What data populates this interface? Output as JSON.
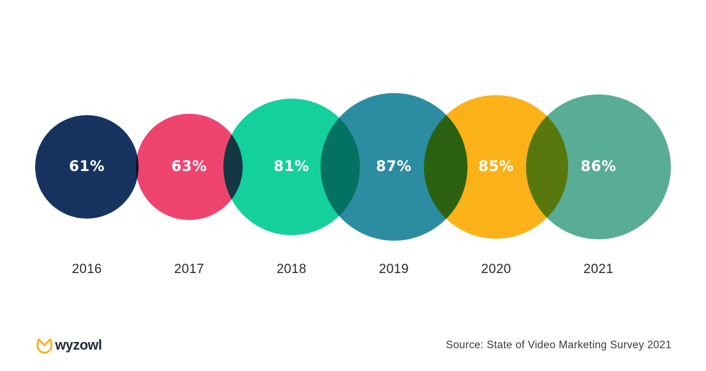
{
  "chart_data": {
    "type": "bubble",
    "variant": "overlapping-proportional-circles",
    "title": "",
    "categories": [
      "2016",
      "2017",
      "2018",
      "2019",
      "2020",
      "2021"
    ],
    "values": [
      61,
      63,
      81,
      87,
      85,
      86
    ],
    "unit": "%",
    "colors": [
      "#173460",
      "#EF446E",
      "#14D09C",
      "#2B8CA2",
      "#FBB118",
      "#59AD94"
    ],
    "overlap_blend": "multiply",
    "value_label_color": "#FFFFFF",
    "category_label_color": "#2A2A2A",
    "legend": "none",
    "grid": "off"
  },
  "footer": {
    "logo_text": "wyzowl",
    "logo_color": "#FBAD19",
    "source": "Source: State of Video Marketing Survey 2021"
  }
}
